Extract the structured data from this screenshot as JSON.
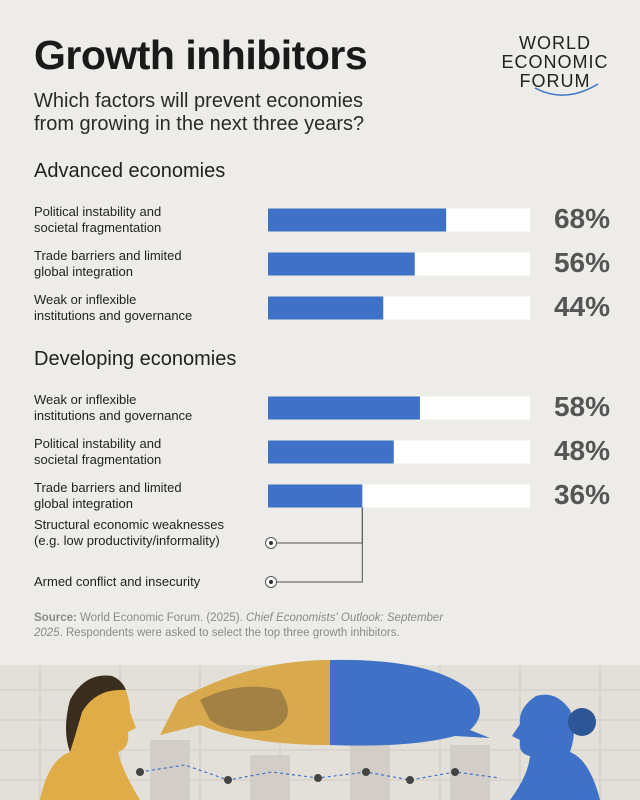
{
  "header": {
    "title": "Growth inhibitors",
    "subtitle": "Which factors will prevent economies\nfrom growing in the next three years?",
    "logo": [
      "WORLD",
      "ECONOMIC",
      "FORUM"
    ]
  },
  "chart_data": [
    {
      "type": "bar",
      "orientation": "horizontal",
      "title": "Advanced economies",
      "categories": [
        "Political instability and\nsocietal fragmentation",
        "Trade barriers and limited\nglobal integration",
        "Weak or inflexible\ninstitutions and governance"
      ],
      "values": [
        68,
        56,
        44
      ],
      "value_labels": [
        "68%",
        "56%",
        "44%"
      ],
      "xlim": [
        0,
        100
      ],
      "color": "#3f72c6",
      "track_color": "#ffffff"
    },
    {
      "type": "bar",
      "orientation": "horizontal",
      "title": "Developing economies",
      "categories": [
        "Weak or inflexible\ninstitutions and governance",
        "Political instability and\nsocietal fragmentation",
        "Trade barriers and limited\nglobal integration"
      ],
      "values": [
        58,
        48,
        36
      ],
      "value_labels": [
        "58%",
        "48%",
        "36%"
      ],
      "tied_with_last": [
        "Structural economic weaknesses\n(e.g. low productivity/informality)",
        "Armed conflict and insecurity"
      ],
      "xlim": [
        0,
        100
      ],
      "color": "#3f72c6",
      "track_color": "#ffffff"
    }
  ],
  "source": {
    "label": "Source:",
    "text": "World Economic Forum. (2025).",
    "publication": "Chief Economists' Outlook: September 2025",
    "note": ". Respondents were asked to select the top three growth inhibitors."
  }
}
